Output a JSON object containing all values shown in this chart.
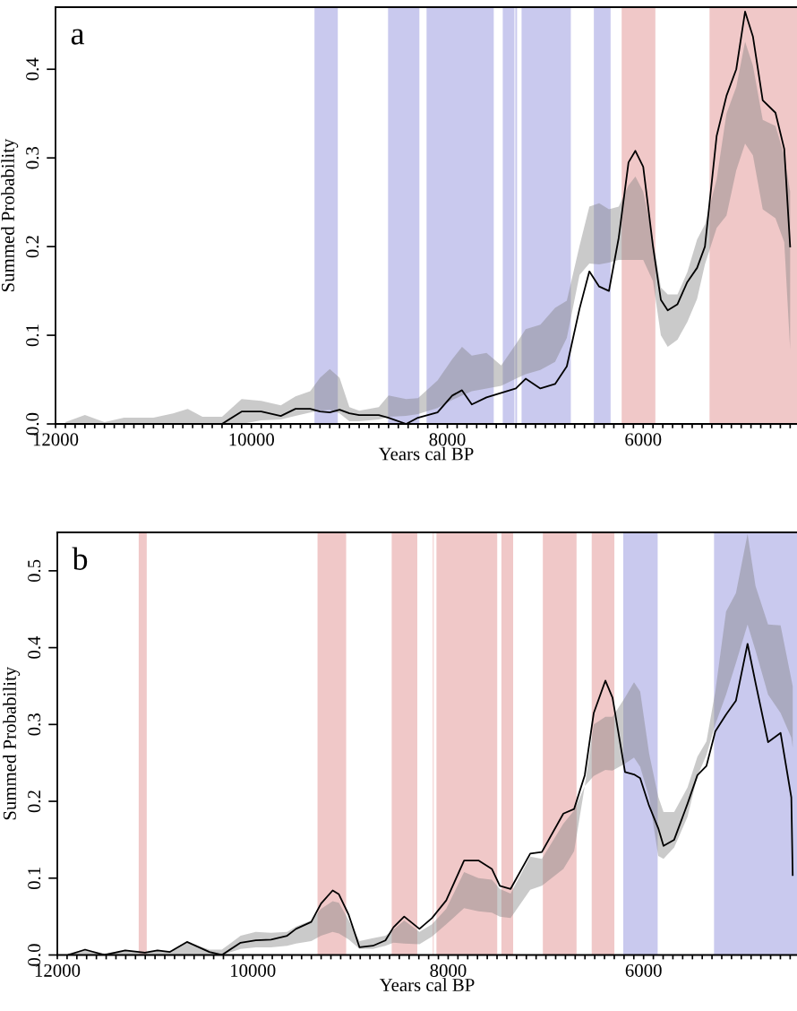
{
  "chart_data": [
    {
      "type": "line",
      "xlabel": "Years cal BP",
      "ylabel": "Summed Probability",
      "annotations": [
        "a"
      ],
      "xlim": [
        12000,
        4430
      ],
      "ylim": [
        0,
        0.47
      ],
      "xticks": [
        12000,
        {
          "value": 11900,
          "label": null
        },
        {
          "value": 11800,
          "label": null
        },
        {
          "value": 11700,
          "label": null
        },
        {
          "value": 11600,
          "label": null
        },
        {
          "value": 11500,
          "label": null
        },
        {
          "value": 11400,
          "label": null
        },
        {
          "value": 11300,
          "label": null
        },
        {
          "value": 11200,
          "label": null
        },
        {
          "value": 11100,
          "label": null
        },
        {
          "value": 11000,
          "label": null
        },
        {
          "value": 10900,
          "label": null
        },
        {
          "value": 10800,
          "label": null
        },
        {
          "value": 10700,
          "label": null
        },
        {
          "value": 10600,
          "label": null
        },
        {
          "value": 10500,
          "label": null
        },
        {
          "value": 10400,
          "label": null
        },
        {
          "value": 10300,
          "label": null
        },
        {
          "value": 10200,
          "label": null
        },
        {
          "value": 10100,
          "label": null
        },
        10000,
        {
          "value": 9900,
          "label": null
        },
        {
          "value": 9800,
          "label": null
        },
        {
          "value": 9700,
          "label": null
        },
        {
          "value": 9600,
          "label": null
        },
        {
          "value": 9500,
          "label": null
        },
        {
          "value": 9400,
          "label": null
        },
        {
          "value": 9300,
          "label": null
        },
        {
          "value": 9200,
          "label": null
        },
        {
          "value": 9100,
          "label": null
        },
        {
          "value": 9000,
          "label": null
        },
        {
          "value": 8900,
          "label": null
        },
        {
          "value": 8800,
          "label": null
        },
        {
          "value": 8700,
          "label": null
        },
        {
          "value": 8600,
          "label": null
        },
        {
          "value": 8500,
          "label": null
        },
        {
          "value": 8400,
          "label": null
        },
        {
          "value": 8300,
          "label": null
        },
        {
          "value": 8200,
          "label": null
        },
        {
          "value": 8100,
          "label": null
        },
        8000,
        {
          "value": 7900,
          "label": null
        },
        {
          "value": 7800,
          "label": null
        },
        {
          "value": 7700,
          "label": null
        },
        {
          "value": 7600,
          "label": null
        },
        {
          "value": 7500,
          "label": null
        },
        {
          "value": 7400,
          "label": null
        },
        {
          "value": 7300,
          "label": null
        },
        {
          "value": 7200,
          "label": null
        },
        {
          "value": 7100,
          "label": null
        },
        {
          "value": 7000,
          "label": null
        },
        {
          "value": 6900,
          "label": null
        },
        {
          "value": 6800,
          "label": null
        },
        {
          "value": 6700,
          "label": null
        },
        {
          "value": 6600,
          "label": null
        },
        {
          "value": 6500,
          "label": null
        },
        {
          "value": 6400,
          "label": null
        },
        {
          "value": 6300,
          "label": null
        },
        {
          "value": 6200,
          "label": null
        },
        {
          "value": 6100,
          "label": null
        },
        6000,
        {
          "value": 5900,
          "label": null
        },
        {
          "value": 5800,
          "label": null
        },
        {
          "value": 5700,
          "label": null
        },
        {
          "value": 5600,
          "label": null
        },
        {
          "value": 5500,
          "label": null
        },
        {
          "value": 5400,
          "label": null
        },
        {
          "value": 5300,
          "label": null
        },
        {
          "value": 5200,
          "label": null
        },
        {
          "value": 5100,
          "label": null
        },
        {
          "value": 5000,
          "label": null
        },
        {
          "value": 4900,
          "label": null
        },
        {
          "value": 4800,
          "label": null
        },
        {
          "value": 4700,
          "label": null
        },
        {
          "value": 4600,
          "label": null
        },
        {
          "value": 4500,
          "label": null
        }
      ],
      "yticks": [
        {
          "value": 0,
          "label": "0.0"
        },
        {
          "value": 0.1,
          "label": "0.1"
        },
        {
          "value": 0.2,
          "label": "0.2"
        },
        {
          "value": 0.3,
          "label": "0.3"
        },
        {
          "value": 0.4,
          "label": "0.4"
        }
      ],
      "bands": [
        {
          "axis": "x",
          "from": 9356,
          "to": 9118,
          "color": "#c9c9ee"
        },
        {
          "axis": "x",
          "from": 8605,
          "to": 8285,
          "color": "#c9c9ee"
        },
        {
          "axis": "x",
          "from": 8212,
          "to": 7526,
          "color": "#c9c9ee"
        },
        {
          "axis": "x",
          "from": 7434,
          "to": 7315,
          "color": "#c9c9ee"
        },
        {
          "axis": "x",
          "from": 7306,
          "to": 7288,
          "color": "#c9c9ee"
        },
        {
          "axis": "x",
          "from": 7242,
          "to": 6739,
          "color": "#c9c9ee"
        },
        {
          "axis": "x",
          "from": 6504,
          "to": 6333,
          "color": "#c9c9ee"
        },
        {
          "axis": "x",
          "from": 6220,
          "to": 5876,
          "color": "#f0c8c8"
        },
        {
          "axis": "x",
          "from": 5323,
          "to": 4430,
          "color": "#f0c8c8"
        }
      ],
      "series": [
        {
          "color": "#000000",
          "x": [
            11900,
            11700,
            11500,
            11300,
            11000,
            10800,
            10650,
            10500,
            10300,
            10100,
            9900,
            9700,
            9550,
            9400,
            9300,
            9200,
            9100,
            9000,
            8900,
            8700,
            8600,
            8420,
            8300,
            8100,
            7950,
            7850,
            7750,
            7600,
            7450,
            7300,
            7200,
            7050,
            6900,
            6780,
            6650,
            6550,
            6450,
            6350,
            6250,
            6150,
            6080,
            6000,
            5900,
            5820,
            5750,
            5650,
            5550,
            5450,
            5370,
            5250,
            5150,
            5050,
            4960,
            4880,
            4780,
            4650,
            4560,
            4500
          ],
          "values": [
            null,
            null,
            null,
            null,
            null,
            null,
            null,
            null,
            0.0,
            0.014,
            0.014,
            0.009,
            0.017,
            0.017,
            0.014,
            0.013,
            0.016,
            0.012,
            0.01,
            0.01,
            0.007,
            0.0,
            0.007,
            0.013,
            0.032,
            0.038,
            0.022,
            0.03,
            0.035,
            0.04,
            0.051,
            0.04,
            0.045,
            0.065,
            0.13,
            0.172,
            0.155,
            0.15,
            0.21,
            0.295,
            0.308,
            0.29,
            0.2,
            0.14,
            0.128,
            0.135,
            0.16,
            0.176,
            0.2,
            0.325,
            0.37,
            0.4,
            0.465,
            0.437,
            0.365,
            0.351,
            0.31,
            0.2
          ],
          "lower": [
            0,
            0,
            0,
            0,
            0,
            0,
            0,
            0,
            0,
            0,
            0.004,
            0.005,
            0.009,
            0.013,
            0.015,
            0.016,
            0.012,
            0.003,
            0.003,
            0.005,
            0.008,
            0.009,
            0.011,
            0.018,
            0.027,
            0.032,
            0.037,
            0.04,
            0.043,
            0.051,
            0.056,
            0.061,
            0.07,
            0.097,
            0.168,
            0.181,
            0.18,
            0.182,
            0.185,
            0.185,
            0.185,
            0.185,
            0.161,
            0.1,
            0.087,
            0.095,
            0.115,
            0.141,
            0.18,
            0.221,
            0.235,
            0.286,
            0.316,
            0.303,
            0.242,
            0.232,
            0.205,
            0.084
          ],
          "upper": [
            0.002,
            0.01,
            0.002,
            0.007,
            0.007,
            0.012,
            0.017,
            0.008,
            0.008,
            0.028,
            0.026,
            0.021,
            0.031,
            0.037,
            0.052,
            0.062,
            0.052,
            0.019,
            0.015,
            0.019,
            0.032,
            0.028,
            0.029,
            0.049,
            0.073,
            0.087,
            0.077,
            0.08,
            0.066,
            0.09,
            0.107,
            0.112,
            0.131,
            0.139,
            0.201,
            0.245,
            0.249,
            0.242,
            0.245,
            0.269,
            0.279,
            0.262,
            0.208,
            0.154,
            0.146,
            0.146,
            0.171,
            0.208,
            0.225,
            0.276,
            0.35,
            0.38,
            0.431,
            0.404,
            0.343,
            0.336,
            0.303,
            0.262
          ]
        }
      ]
    },
    {
      "type": "line",
      "xlabel": "Years cal BP",
      "ylabel": "Summed Probability",
      "annotations": [
        "b"
      ],
      "xlim": [
        12000,
        4430
      ],
      "ylim": [
        0,
        0.55
      ],
      "xticks": [
        12000,
        {
          "value": 11900,
          "label": null
        },
        {
          "value": 11800,
          "label": null
        },
        {
          "value": 11700,
          "label": null
        },
        {
          "value": 11600,
          "label": null
        },
        {
          "value": 11500,
          "label": null
        },
        {
          "value": 11400,
          "label": null
        },
        {
          "value": 11300,
          "label": null
        },
        {
          "value": 11200,
          "label": null
        },
        {
          "value": 11100,
          "label": null
        },
        {
          "value": 11000,
          "label": null
        },
        {
          "value": 10900,
          "label": null
        },
        {
          "value": 10800,
          "label": null
        },
        {
          "value": 10700,
          "label": null
        },
        {
          "value": 10600,
          "label": null
        },
        {
          "value": 10500,
          "label": null
        },
        {
          "value": 10400,
          "label": null
        },
        {
          "value": 10300,
          "label": null
        },
        {
          "value": 10200,
          "label": null
        },
        {
          "value": 10100,
          "label": null
        },
        10000,
        {
          "value": 9900,
          "label": null
        },
        {
          "value": 9800,
          "label": null
        },
        {
          "value": 9700,
          "label": null
        },
        {
          "value": 9600,
          "label": null
        },
        {
          "value": 9500,
          "label": null
        },
        {
          "value": 9400,
          "label": null
        },
        {
          "value": 9300,
          "label": null
        },
        {
          "value": 9200,
          "label": null
        },
        {
          "value": 9100,
          "label": null
        },
        {
          "value": 9000,
          "label": null
        },
        {
          "value": 8900,
          "label": null
        },
        {
          "value": 8800,
          "label": null
        },
        {
          "value": 8700,
          "label": null
        },
        {
          "value": 8600,
          "label": null
        },
        {
          "value": 8500,
          "label": null
        },
        {
          "value": 8400,
          "label": null
        },
        {
          "value": 8300,
          "label": null
        },
        {
          "value": 8200,
          "label": null
        },
        {
          "value": 8100,
          "label": null
        },
        8000,
        {
          "value": 7900,
          "label": null
        },
        {
          "value": 7800,
          "label": null
        },
        {
          "value": 7700,
          "label": null
        },
        {
          "value": 7600,
          "label": null
        },
        {
          "value": 7500,
          "label": null
        },
        {
          "value": 7400,
          "label": null
        },
        {
          "value": 7300,
          "label": null
        },
        {
          "value": 7200,
          "label": null
        },
        {
          "value": 7100,
          "label": null
        },
        {
          "value": 7000,
          "label": null
        },
        {
          "value": 6900,
          "label": null
        },
        {
          "value": 6800,
          "label": null
        },
        {
          "value": 6700,
          "label": null
        },
        {
          "value": 6600,
          "label": null
        },
        {
          "value": 6500,
          "label": null
        },
        {
          "value": 6400,
          "label": null
        },
        {
          "value": 6300,
          "label": null
        },
        {
          "value": 6200,
          "label": null
        },
        {
          "value": 6100,
          "label": null
        },
        6000,
        {
          "value": 5900,
          "label": null
        },
        {
          "value": 5800,
          "label": null
        },
        {
          "value": 5700,
          "label": null
        },
        {
          "value": 5600,
          "label": null
        },
        {
          "value": 5500,
          "label": null
        },
        {
          "value": 5400,
          "label": null
        },
        {
          "value": 5300,
          "label": null
        },
        {
          "value": 5200,
          "label": null
        },
        {
          "value": 5100,
          "label": null
        },
        {
          "value": 5000,
          "label": null
        },
        {
          "value": 4900,
          "label": null
        },
        {
          "value": 4800,
          "label": null
        },
        {
          "value": 4700,
          "label": null
        },
        {
          "value": 4600,
          "label": null
        },
        {
          "value": 4500,
          "label": null
        }
      ],
      "yticks": [
        {
          "value": 0,
          "label": "0.0"
        },
        {
          "value": 0.1,
          "label": "0.1"
        },
        {
          "value": 0.2,
          "label": "0.2"
        },
        {
          "value": 0.3,
          "label": "0.3"
        },
        {
          "value": 0.4,
          "label": "0.4"
        },
        {
          "value": 0.5,
          "label": "0.5"
        }
      ],
      "bands": [
        {
          "axis": "x",
          "from": 11167,
          "to": 11085,
          "color": "#f0c8c8"
        },
        {
          "axis": "x",
          "from": 9337,
          "to": 9044,
          "color": "#f0c8c8"
        },
        {
          "axis": "x",
          "from": 8578,
          "to": 8316,
          "color": "#f0c8c8"
        },
        {
          "axis": "x",
          "from": 8157,
          "to": 8148,
          "color": "#f0c8c8"
        },
        {
          "axis": "x",
          "from": 8120,
          "to": 7498,
          "color": "#f0c8c8"
        },
        {
          "axis": "x",
          "from": 7455,
          "to": 7335,
          "color": "#f0c8c8"
        },
        {
          "axis": "x",
          "from": 7031,
          "to": 6686,
          "color": "#f0c8c8"
        },
        {
          "axis": "x",
          "from": 6531,
          "to": 6299,
          "color": "#f0c8c8"
        },
        {
          "axis": "x",
          "from": 6208,
          "to": 5856,
          "color": "#c9c9ee"
        },
        {
          "axis": "x",
          "from": 5279,
          "to": 4430,
          "color": "#c9c9ee"
        }
      ],
      "series": [
        {
          "color": "#000000",
          "x": [
            11890,
            11716,
            11515,
            11305,
            11103,
            10975,
            10847,
            10673,
            10444,
            10316,
            10124,
            9969,
            9813,
            9648,
            9557,
            9401,
            9301,
            9182,
            9118,
            9017,
            8907,
            8770,
            8642,
            8560,
            8450,
            8294,
            8166,
            8020,
            7837,
            7690,
            7553,
            7471,
            7361,
            7160,
            7041,
            6821,
            6711,
            6602,
            6510,
            6391,
            6318,
            6190,
            6098,
            6035,
            5943,
            5850,
            5796,
            5687,
            5550,
            5449,
            5357,
            5266,
            5156,
            5055,
            4936,
            4854,
            4726,
            4598,
            4488,
            4474
          ],
          "values": [
            0,
            0.007,
            0,
            0.006,
            0.003,
            0.006,
            0.004,
            0.017,
            0.004,
            0,
            0.016,
            0.019,
            0.02,
            0.025,
            0.034,
            0.043,
            0.067,
            0.084,
            0.079,
            0.052,
            0.01,
            0.012,
            0.019,
            0.036,
            0.05,
            0.034,
            0.048,
            0.071,
            0.123,
            0.123,
            0.112,
            0.09,
            0.086,
            0.132,
            0.134,
            0.184,
            0.19,
            0.234,
            0.315,
            0.357,
            0.335,
            0.238,
            0.235,
            0.23,
            0.194,
            0.165,
            0.142,
            0.15,
            0.197,
            0.234,
            0.246,
            0.291,
            0.313,
            0.331,
            0.405,
            0.354,
            0.277,
            0.289,
            0.205,
            0.104
          ],
          "lower": [
            0,
            0,
            0,
            0,
            0,
            0,
            0,
            0,
            0,
            0,
            0.008,
            0.01,
            0.01,
            0.012,
            0.015,
            0.018,
            0.025,
            0.03,
            0.028,
            0.02,
            0.008,
            0.008,
            0.012,
            0.016,
            0.015,
            0.014,
            0.024,
            0.04,
            0.061,
            0.057,
            0.055,
            0.05,
            0.048,
            0.085,
            0.09,
            0.112,
            0.135,
            0.22,
            0.233,
            0.241,
            0.24,
            0.249,
            0.257,
            0.245,
            0.205,
            0.129,
            0.125,
            0.14,
            0.18,
            0.233,
            0.26,
            0.3,
            0.339,
            0.38,
            0.43,
            0.396,
            0.339,
            0.315,
            0.283,
            0.27
          ],
          "upper": [
            0.002,
            0.007,
            0.002,
            0.006,
            0.003,
            0.006,
            0.004,
            0.017,
            0.007,
            0.007,
            0.025,
            0.03,
            0.029,
            0.03,
            0.037,
            0.045,
            0.06,
            0.07,
            0.068,
            0.045,
            0.018,
            0.022,
            0.025,
            0.033,
            0.045,
            0.03,
            0.04,
            0.06,
            0.108,
            0.1,
            0.098,
            0.086,
            0.08,
            0.128,
            0.125,
            0.171,
            0.188,
            0.22,
            0.3,
            0.31,
            0.31,
            0.335,
            0.355,
            0.343,
            0.262,
            0.206,
            0.186,
            0.186,
            0.218,
            0.258,
            0.278,
            0.343,
            0.447,
            0.471,
            0.548,
            0.48,
            0.43,
            0.429,
            0.359,
            0.35
          ]
        }
      ]
    }
  ]
}
